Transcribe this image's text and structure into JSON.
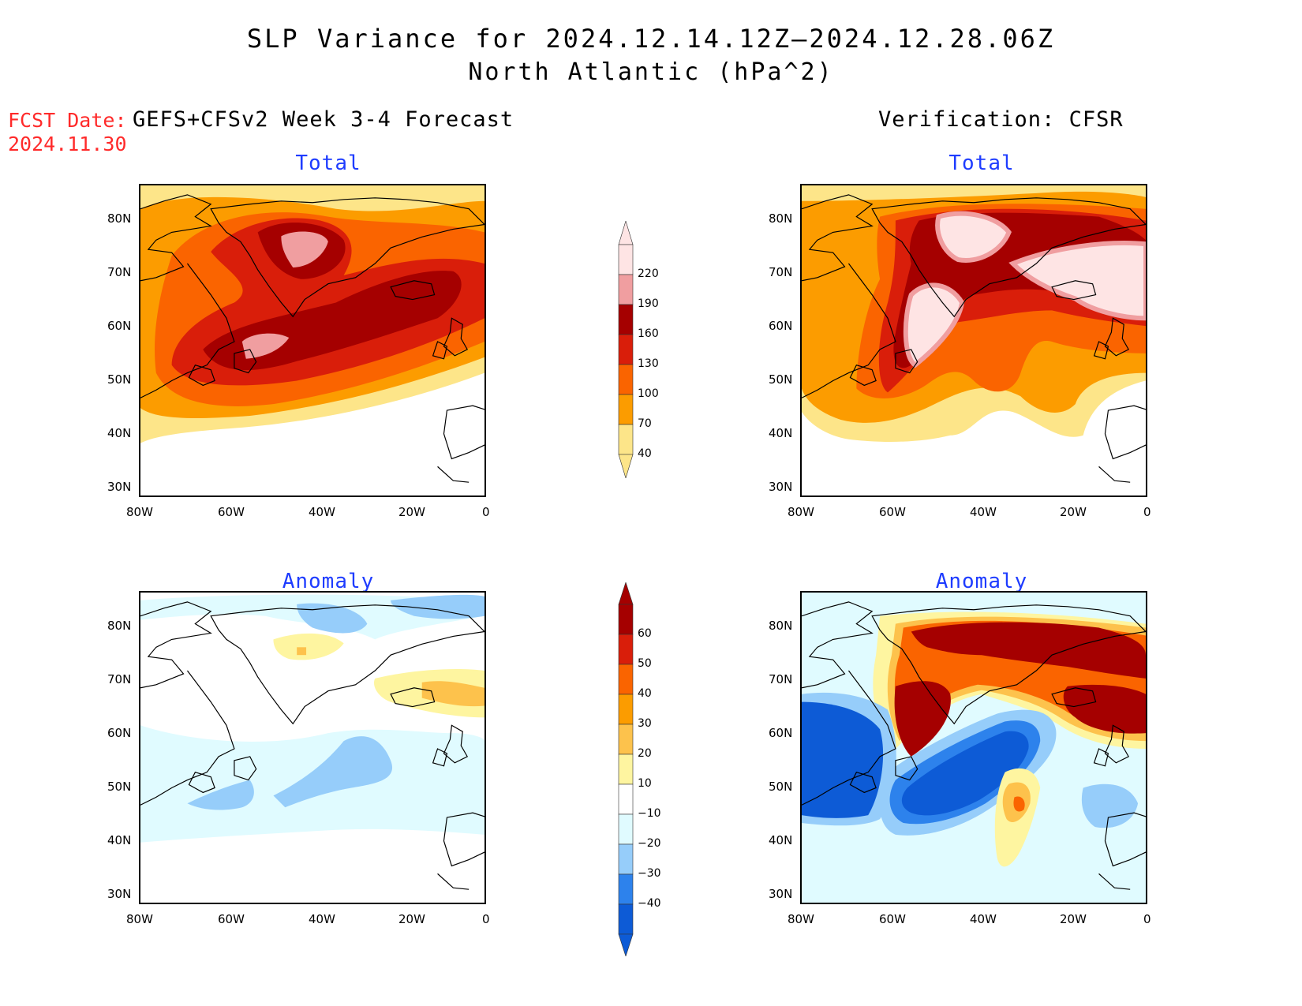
{
  "header": {
    "title_line1": "SLP Variance for 2024.12.14.12Z–2024.12.28.06Z",
    "title_line2": "North Atlantic (hPa^2)",
    "fcst_date_label": "FCST Date:",
    "fcst_date_value": "2024.11.30"
  },
  "columns": {
    "left": "GEFS+CFSv2 Week 3-4 Forecast",
    "right": "Verification: CFSR"
  },
  "panels": {
    "forecast_total": {
      "title": "Total"
    },
    "verification_total": {
      "title": "Total"
    },
    "forecast_anomaly": {
      "title": "Anomaly"
    },
    "verification_anomaly": {
      "title": "Anomaly"
    }
  },
  "axes": {
    "lon_labels": [
      "80W",
      "60W",
      "40W",
      "20W",
      "0"
    ],
    "lat_labels": [
      "80N",
      "70N",
      "60N",
      "50N",
      "40N",
      "30N"
    ]
  },
  "colorbars": {
    "total": {
      "levels": [
        "220",
        "190",
        "160",
        "130",
        "100",
        "70",
        "40"
      ],
      "colors": [
        "#fee4e4",
        "#f09ea0",
        "#a50000",
        "#d91e0a",
        "#fa6400",
        "#fc9c00",
        "#fde589"
      ]
    },
    "anomaly": {
      "levels": [
        "60",
        "50",
        "40",
        "30",
        "20",
        "10",
        "−10",
        "−20",
        "−30",
        "−40"
      ],
      "colors": [
        "#a50000",
        "#d91e0a",
        "#fa6400",
        "#fc9c00",
        "#fdc24c",
        "#fef5a0",
        "#ffffff",
        "#e0fbff",
        "#96cdfa",
        "#2d82ec",
        "#0d5bd6"
      ]
    }
  },
  "map_data": {
    "region": "North Atlantic",
    "lon_range": [
      "80W",
      "0"
    ],
    "lat_range": [
      "25N",
      "85N"
    ],
    "features": [
      "Greenland",
      "Iceland",
      "British Isles",
      "Iberia",
      "Newfoundland",
      "Labrador"
    ],
    "forecast_total_max_band": "190-220",
    "verification_total_max_band": ">220",
    "verification_anomaly_range": [
      "<-40",
      ">60"
    ]
  }
}
